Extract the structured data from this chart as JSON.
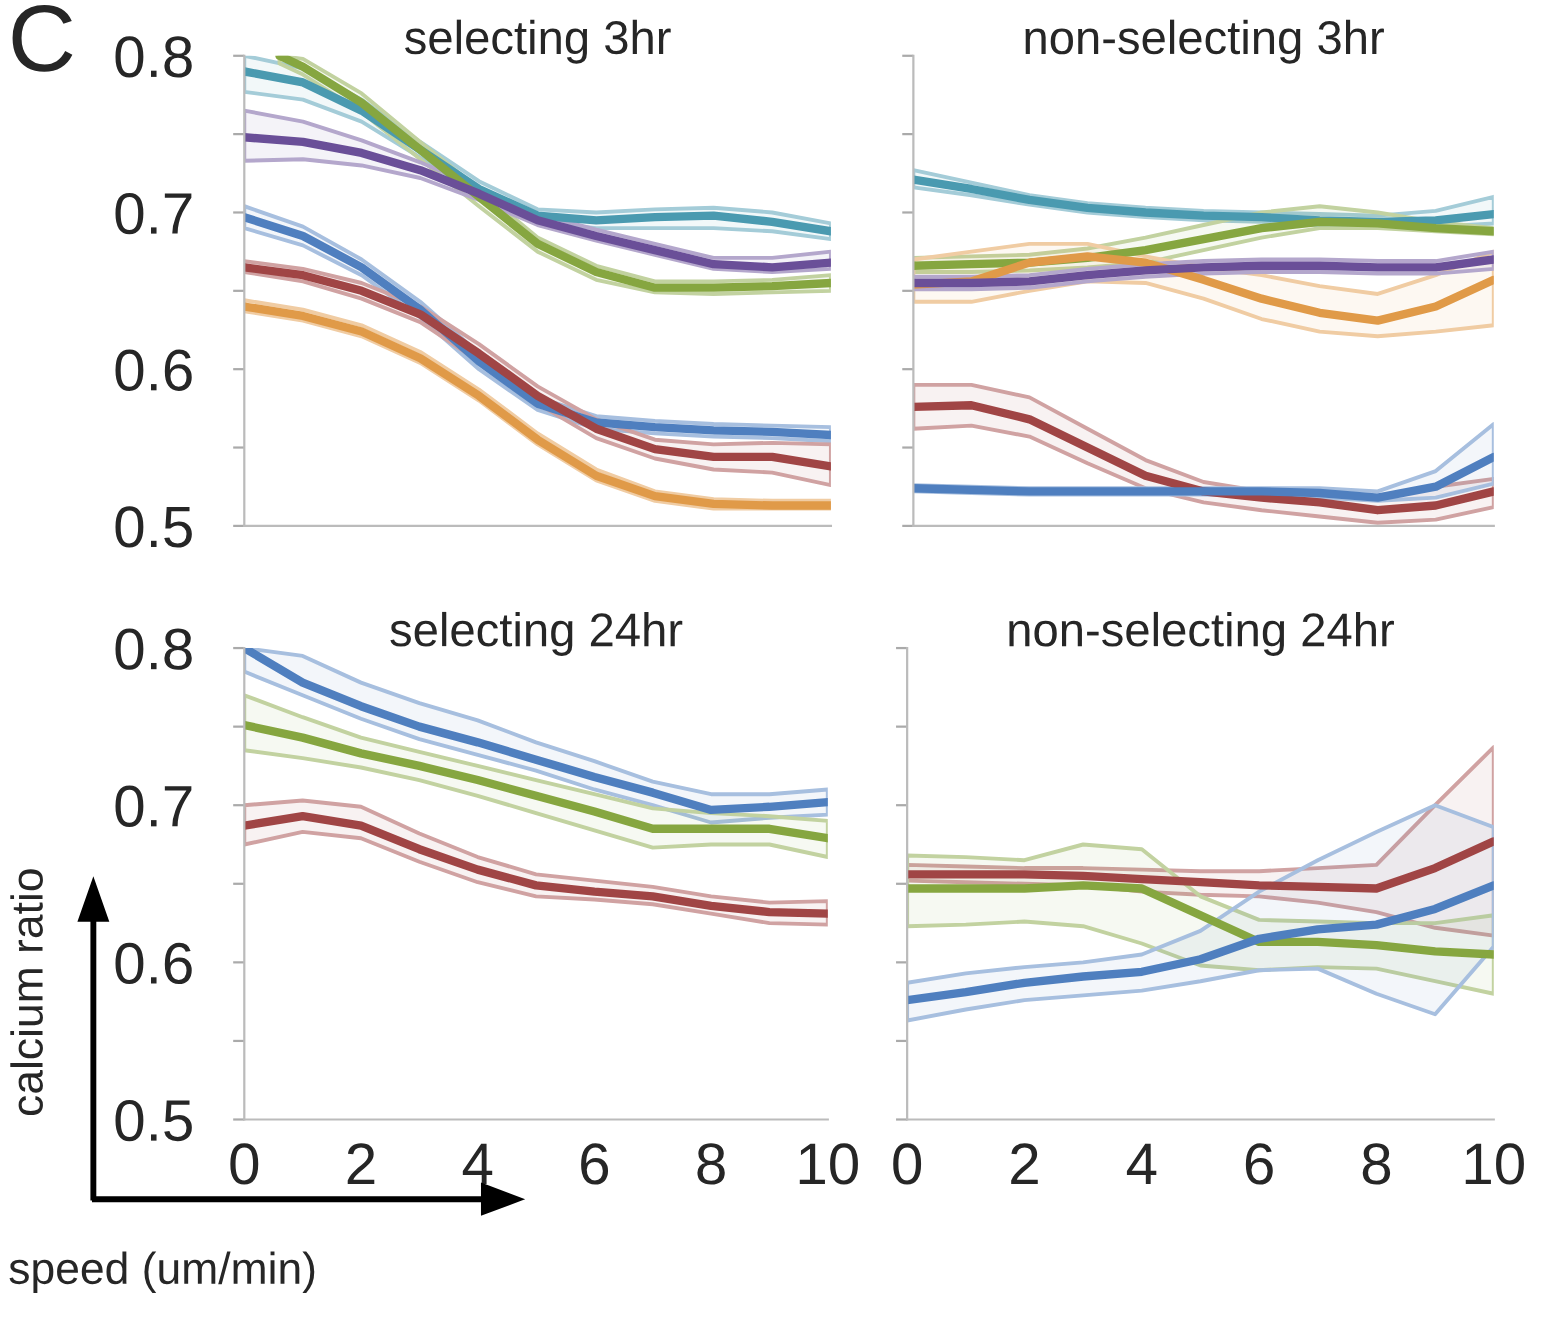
{
  "chart_data": [
    {
      "type": "line",
      "title": "selecting 3hr",
      "annotations": [
        "C"
      ],
      "xlim": [
        0,
        10
      ],
      "ylim": [
        0.5,
        0.8
      ],
      "xticks": [
        0,
        2,
        4,
        6,
        8,
        10
      ],
      "yticks": [
        0.5,
        {
          "value": 0.55,
          "label": null
        },
        0.6,
        {
          "value": 0.65,
          "label": null
        },
        0.7,
        {
          "value": 0.75,
          "label": null
        },
        0.8
      ],
      "tick_labels": "y",
      "grid": false,
      "legend": false,
      "marker": "none",
      "line_style": "solid",
      "series": [
        {
          "color": "#4a9ab0",
          "x": [
            0,
            1,
            2,
            3,
            4,
            5,
            6,
            7,
            8,
            9,
            10
          ],
          "values": [
            0.79,
            0.783,
            0.765,
            0.74,
            0.715,
            0.698,
            0.695,
            0.697,
            0.698,
            0.694,
            0.688
          ],
          "lower": [
            0.777,
            0.772,
            0.758,
            0.735,
            0.711,
            0.694,
            0.69,
            0.69,
            0.69,
            0.688,
            0.683
          ],
          "upper": [
            0.8,
            0.792,
            0.772,
            0.745,
            0.72,
            0.702,
            0.7,
            0.702,
            0.703,
            0.7,
            0.693
          ]
        },
        {
          "color": "#86a640",
          "x": [
            0.6,
            1,
            2,
            3,
            4,
            5,
            6,
            7,
            8,
            9,
            10
          ],
          "values": [
            0.8,
            0.793,
            0.77,
            0.74,
            0.71,
            0.68,
            0.662,
            0.652,
            0.652,
            0.653,
            0.655
          ],
          "lower": [
            0.795,
            0.788,
            0.764,
            0.734,
            0.704,
            0.675,
            0.657,
            0.649,
            0.648,
            0.649,
            0.65
          ],
          "upper": [
            0.8,
            0.798,
            0.776,
            0.745,
            0.715,
            0.684,
            0.666,
            0.656,
            0.656,
            0.657,
            0.66
          ]
        },
        {
          "color": "#6a4f98",
          "x": [
            0,
            1,
            2,
            3,
            4,
            5,
            6,
            7,
            8,
            9,
            10
          ],
          "values": [
            0.748,
            0.745,
            0.738,
            0.727,
            0.712,
            0.695,
            0.685,
            0.676,
            0.667,
            0.665,
            0.668
          ],
          "lower": [
            0.733,
            0.734,
            0.73,
            0.722,
            0.708,
            0.692,
            0.682,
            0.673,
            0.664,
            0.662,
            0.664
          ],
          "upper": [
            0.765,
            0.758,
            0.746,
            0.732,
            0.716,
            0.699,
            0.689,
            0.68,
            0.671,
            0.671,
            0.675
          ]
        },
        {
          "color": "#4f7fbf",
          "x": [
            0,
            1,
            2,
            3,
            4,
            5,
            6,
            7,
            8,
            9,
            10
          ],
          "values": [
            0.697,
            0.685,
            0.665,
            0.638,
            0.605,
            0.578,
            0.566,
            0.563,
            0.561,
            0.56,
            0.558
          ],
          "lower": [
            0.69,
            0.679,
            0.66,
            0.633,
            0.6,
            0.574,
            0.562,
            0.559,
            0.557,
            0.556,
            0.554
          ],
          "upper": [
            0.704,
            0.691,
            0.67,
            0.643,
            0.61,
            0.582,
            0.57,
            0.567,
            0.565,
            0.564,
            0.563
          ]
        },
        {
          "color": "#a04545",
          "x": [
            0,
            1,
            2,
            3,
            4,
            5,
            6,
            7,
            8,
            9,
            10
          ],
          "values": [
            0.665,
            0.66,
            0.65,
            0.635,
            0.61,
            0.583,
            0.562,
            0.549,
            0.544,
            0.544,
            0.538
          ],
          "lower": [
            0.662,
            0.656,
            0.645,
            0.63,
            0.605,
            0.578,
            0.556,
            0.543,
            0.536,
            0.534,
            0.526
          ],
          "upper": [
            0.669,
            0.664,
            0.655,
            0.64,
            0.616,
            0.589,
            0.568,
            0.555,
            0.552,
            0.553,
            0.552
          ]
        },
        {
          "color": "#e09a48",
          "x": [
            0,
            1,
            2,
            3,
            4,
            5,
            6,
            7,
            8,
            9,
            10
          ],
          "values": [
            0.64,
            0.634,
            0.624,
            0.607,
            0.583,
            0.555,
            0.532,
            0.519,
            0.514,
            0.513,
            0.513
          ],
          "lower": [
            0.637,
            0.631,
            0.621,
            0.604,
            0.58,
            0.552,
            0.529,
            0.516,
            0.511,
            0.511,
            0.511
          ],
          "upper": [
            0.644,
            0.638,
            0.628,
            0.611,
            0.587,
            0.559,
            0.536,
            0.522,
            0.517,
            0.516,
            0.516
          ]
        }
      ]
    },
    {
      "type": "line",
      "title": "non-selecting 3hr",
      "xlim": [
        0,
        10
      ],
      "ylim": [
        0.5,
        0.8
      ],
      "xticks": [
        0,
        2,
        4,
        6,
        8,
        10
      ],
      "yticks": [
        0.5,
        {
          "value": 0.55,
          "label": null
        },
        0.6,
        {
          "value": 0.65,
          "label": null
        },
        0.7,
        {
          "value": 0.75,
          "label": null
        },
        0.8
      ],
      "tick_labels": false,
      "grid": false,
      "legend": false,
      "marker": "none",
      "line_style": "solid",
      "series": [
        {
          "color": "#4a9ab0",
          "x": [
            0,
            1,
            2,
            3,
            4,
            5,
            6,
            7,
            8,
            9,
            10
          ],
          "values": [
            0.721,
            0.715,
            0.708,
            0.703,
            0.7,
            0.698,
            0.697,
            0.695,
            0.694,
            0.695,
            0.699
          ],
          "lower": [
            0.716,
            0.711,
            0.705,
            0.7,
            0.697,
            0.695,
            0.694,
            0.692,
            0.691,
            0.691,
            0.693
          ],
          "upper": [
            0.727,
            0.719,
            0.711,
            0.706,
            0.703,
            0.701,
            0.7,
            0.699,
            0.698,
            0.701,
            0.71
          ]
        },
        {
          "color": "#86a640",
          "x": [
            0,
            1,
            2,
            3,
            4,
            5,
            6,
            7,
            8,
            9,
            10
          ],
          "values": [
            0.666,
            0.667,
            0.668,
            0.671,
            0.676,
            0.683,
            0.69,
            0.694,
            0.693,
            0.69,
            0.688
          ],
          "lower": [
            0.662,
            0.662,
            0.663,
            0.665,
            0.668,
            0.676,
            0.684,
            0.69,
            0.69,
            0.688,
            0.686
          ],
          "upper": [
            0.671,
            0.672,
            0.673,
            0.677,
            0.684,
            0.692,
            0.7,
            0.704,
            0.7,
            0.694,
            0.69
          ]
        },
        {
          "color": "#e09a48",
          "x": [
            0,
            1,
            2,
            3,
            4,
            5,
            6,
            7,
            8,
            9,
            10
          ],
          "values": [
            0.654,
            0.656,
            0.668,
            0.672,
            0.668,
            0.657,
            0.645,
            0.636,
            0.631,
            0.64,
            0.657
          ],
          "lower": [
            0.643,
            0.643,
            0.65,
            0.656,
            0.655,
            0.645,
            0.632,
            0.624,
            0.621,
            0.624,
            0.628
          ],
          "upper": [
            0.67,
            0.675,
            0.68,
            0.68,
            0.672,
            0.665,
            0.66,
            0.653,
            0.648,
            0.66,
            0.675
          ]
        },
        {
          "color": "#6a4f98",
          "x": [
            0,
            1,
            2,
            3,
            4,
            5,
            6,
            7,
            8,
            9,
            10
          ],
          "values": [
            0.655,
            0.655,
            0.656,
            0.66,
            0.663,
            0.665,
            0.666,
            0.666,
            0.665,
            0.665,
            0.67
          ],
          "lower": [
            0.651,
            0.651,
            0.652,
            0.656,
            0.659,
            0.661,
            0.662,
            0.662,
            0.661,
            0.661,
            0.664
          ],
          "upper": [
            0.659,
            0.659,
            0.66,
            0.664,
            0.667,
            0.669,
            0.67,
            0.67,
            0.669,
            0.669,
            0.675
          ]
        },
        {
          "color": "#a04545",
          "x": [
            0,
            1,
            2,
            3,
            4,
            5,
            6,
            7,
            8,
            9,
            10
          ],
          "values": [
            0.576,
            0.577,
            0.568,
            0.55,
            0.532,
            0.522,
            0.518,
            0.515,
            0.51,
            0.513,
            0.522
          ],
          "lower": [
            0.562,
            0.564,
            0.557,
            0.54,
            0.524,
            0.515,
            0.51,
            0.506,
            0.502,
            0.504,
            0.512
          ],
          "upper": [
            0.59,
            0.59,
            0.582,
            0.562,
            0.542,
            0.528,
            0.522,
            0.52,
            0.518,
            0.525,
            0.53
          ]
        },
        {
          "color": "#4f7fbf",
          "x": [
            0,
            1,
            2,
            3,
            4,
            5,
            6,
            7,
            8,
            9,
            10
          ],
          "values": [
            0.524,
            0.523,
            0.522,
            0.522,
            0.522,
            0.522,
            0.522,
            0.521,
            0.518,
            0.525,
            0.544
          ],
          "lower": [
            0.522,
            0.521,
            0.52,
            0.52,
            0.52,
            0.52,
            0.519,
            0.518,
            0.516,
            0.518,
            0.527
          ],
          "upper": [
            0.526,
            0.525,
            0.524,
            0.524,
            0.524,
            0.524,
            0.524,
            0.524,
            0.522,
            0.535,
            0.565
          ]
        }
      ]
    },
    {
      "type": "line",
      "title": "selecting 24hr",
      "xlabel": "speed (um/min)",
      "ylabel": "calcium ratio",
      "xlim": [
        0,
        10
      ],
      "ylim": [
        0.5,
        0.8
      ],
      "xticks": [
        0,
        2,
        4,
        6,
        8,
        10
      ],
      "yticks": [
        0.5,
        {
          "value": 0.55,
          "label": null
        },
        0.6,
        {
          "value": 0.65,
          "label": null
        },
        0.7,
        {
          "value": 0.75,
          "label": null
        },
        0.8
      ],
      "grid": false,
      "legend": false,
      "marker": "none",
      "line_style": "solid",
      "series": [
        {
          "color": "#4f7fbf",
          "x": [
            0,
            1,
            2,
            3,
            4,
            5,
            6,
            7,
            8,
            9,
            10
          ],
          "values": [
            0.8,
            0.778,
            0.763,
            0.75,
            0.74,
            0.729,
            0.718,
            0.708,
            0.697,
            0.699,
            0.702
          ],
          "lower": [
            0.785,
            0.77,
            0.755,
            0.742,
            0.732,
            0.722,
            0.71,
            0.7,
            0.689,
            0.692,
            0.694
          ],
          "upper": [
            0.8,
            0.795,
            0.778,
            0.765,
            0.754,
            0.74,
            0.728,
            0.715,
            0.707,
            0.707,
            0.71
          ]
        },
        {
          "color": "#86a640",
          "x": [
            0,
            1,
            2,
            3,
            4,
            5,
            6,
            7,
            8,
            9,
            10
          ],
          "values": [
            0.751,
            0.743,
            0.733,
            0.725,
            0.716,
            0.706,
            0.696,
            0.685,
            0.685,
            0.685,
            0.679
          ],
          "lower": [
            0.735,
            0.73,
            0.724,
            0.716,
            0.706,
            0.695,
            0.684,
            0.673,
            0.675,
            0.675,
            0.667
          ],
          "upper": [
            0.77,
            0.756,
            0.743,
            0.734,
            0.725,
            0.716,
            0.707,
            0.698,
            0.695,
            0.693,
            0.69
          ]
        },
        {
          "color": "#a04545",
          "x": [
            0,
            1,
            2,
            3,
            4,
            5,
            6,
            7,
            8,
            9,
            10
          ],
          "values": [
            0.687,
            0.693,
            0.687,
            0.672,
            0.659,
            0.649,
            0.645,
            0.642,
            0.636,
            0.632,
            0.631
          ],
          "lower": [
            0.675,
            0.683,
            0.679,
            0.664,
            0.651,
            0.642,
            0.64,
            0.637,
            0.631,
            0.625,
            0.624
          ],
          "upper": [
            0.7,
            0.703,
            0.699,
            0.682,
            0.667,
            0.656,
            0.652,
            0.648,
            0.642,
            0.638,
            0.639
          ]
        }
      ]
    },
    {
      "type": "line",
      "title": "non-selecting 24hr",
      "xlim": [
        0,
        10
      ],
      "ylim": [
        0.5,
        0.8
      ],
      "xticks": [
        0,
        2,
        4,
        6,
        8,
        10
      ],
      "yticks": [
        0.5,
        {
          "value": 0.55,
          "label": null
        },
        0.6,
        {
          "value": 0.65,
          "label": null
        },
        0.7,
        {
          "value": 0.75,
          "label": null
        },
        0.8
      ],
      "tick_labels": "x",
      "grid": false,
      "legend": false,
      "marker": "none",
      "line_style": "solid",
      "series": [
        {
          "color": "#a04545",
          "x": [
            0,
            1,
            2,
            3,
            4,
            5,
            6,
            7,
            8,
            9,
            10
          ],
          "values": [
            0.656,
            0.656,
            0.656,
            0.655,
            0.653,
            0.651,
            0.649,
            0.648,
            0.647,
            0.66,
            0.677
          ],
          "lower": [
            0.652,
            0.651,
            0.65,
            0.649,
            0.645,
            0.643,
            0.642,
            0.638,
            0.632,
            0.622,
            0.617
          ],
          "upper": [
            0.662,
            0.661,
            0.66,
            0.66,
            0.659,
            0.658,
            0.658,
            0.66,
            0.662,
            0.7,
            0.737
          ]
        },
        {
          "color": "#86a640",
          "x": [
            0,
            1,
            2,
            3,
            4,
            5,
            6,
            7,
            8,
            9,
            10
          ],
          "values": [
            0.647,
            0.647,
            0.647,
            0.649,
            0.647,
            0.63,
            0.613,
            0.613,
            0.611,
            0.607,
            0.605
          ],
          "lower": [
            0.623,
            0.624,
            0.626,
            0.623,
            0.612,
            0.598,
            0.595,
            0.597,
            0.596,
            0.588,
            0.58
          ],
          "upper": [
            0.668,
            0.667,
            0.665,
            0.675,
            0.672,
            0.642,
            0.627,
            0.626,
            0.625,
            0.625,
            0.63
          ]
        },
        {
          "color": "#4f7fbf",
          "x": [
            0,
            1,
            2,
            3,
            4,
            5,
            6,
            7,
            8,
            9,
            10
          ],
          "values": [
            0.576,
            0.581,
            0.587,
            0.591,
            0.594,
            0.602,
            0.615,
            0.621,
            0.624,
            0.634,
            0.649
          ],
          "lower": [
            0.563,
            0.57,
            0.576,
            0.579,
            0.582,
            0.588,
            0.595,
            0.596,
            0.58,
            0.567,
            0.61
          ],
          "upper": [
            0.587,
            0.593,
            0.597,
            0.6,
            0.605,
            0.62,
            0.645,
            0.665,
            0.683,
            0.7,
            0.686
          ]
        }
      ]
    }
  ]
}
